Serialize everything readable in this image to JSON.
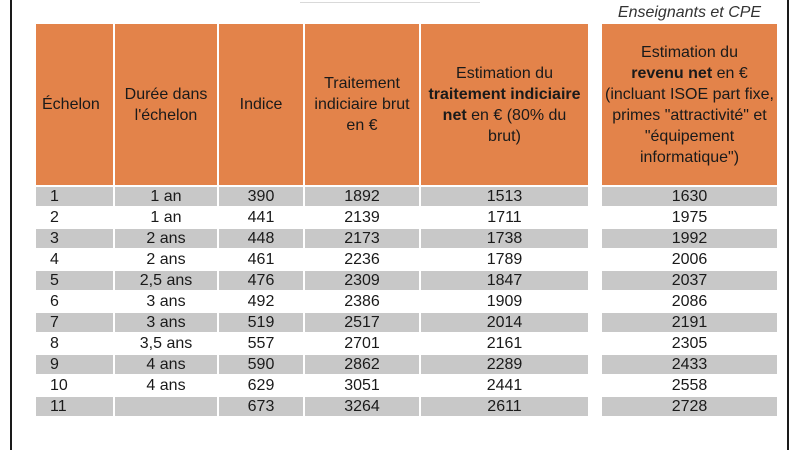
{
  "subtitle": "Enseignants et CPE",
  "headers": {
    "echelon": "Échelon",
    "duree": "Durée dans l'échelon",
    "indice": "Indice",
    "brut": "Traitement indiciaire brut en €",
    "net_pre": "Estimation du",
    "net_bold": "traitement indiciaire net",
    "net_post": "en € (80% du brut)",
    "rev_pre": "Estimation du",
    "rev_bold": "revenu net",
    "rev_post": "en € (incluant ISOE part fixe, primes \"attractivité\" et \"équipement informatique\")"
  },
  "rows": [
    {
      "echelon": "1",
      "duree": "1 an",
      "indice": "390",
      "brut": "1892",
      "net": "1513",
      "revenu": "1630"
    },
    {
      "echelon": "2",
      "duree": "1 an",
      "indice": "441",
      "brut": "2139",
      "net": "1711",
      "revenu": "1975"
    },
    {
      "echelon": "3",
      "duree": "2 ans",
      "indice": "448",
      "brut": "2173",
      "net": "1738",
      "revenu": "1992"
    },
    {
      "echelon": "4",
      "duree": "2 ans",
      "indice": "461",
      "brut": "2236",
      "net": "1789",
      "revenu": "2006"
    },
    {
      "echelon": "5",
      "duree": "2,5 ans",
      "indice": "476",
      "brut": "2309",
      "net": "1847",
      "revenu": "2037"
    },
    {
      "echelon": "6",
      "duree": "3 ans",
      "indice": "492",
      "brut": "2386",
      "net": "1909",
      "revenu": "2086"
    },
    {
      "echelon": "7",
      "duree": "3 ans",
      "indice": "519",
      "brut": "2517",
      "net": "2014",
      "revenu": "2191"
    },
    {
      "echelon": "8",
      "duree": "3,5 ans",
      "indice": "557",
      "brut": "2701",
      "net": "2161",
      "revenu": "2305"
    },
    {
      "echelon": "9",
      "duree": "4 ans",
      "indice": "590",
      "brut": "2862",
      "net": "2289",
      "revenu": "2433"
    },
    {
      "echelon": "10",
      "duree": "4 ans",
      "indice": "629",
      "brut": "3051",
      "net": "2441",
      "revenu": "2558"
    },
    {
      "echelon": "11",
      "duree": "",
      "indice": "673",
      "brut": "3264",
      "net": "2611",
      "revenu": "2728"
    }
  ],
  "colors": {
    "header": "#e3834a",
    "stripe": "#c8c8c8"
  }
}
